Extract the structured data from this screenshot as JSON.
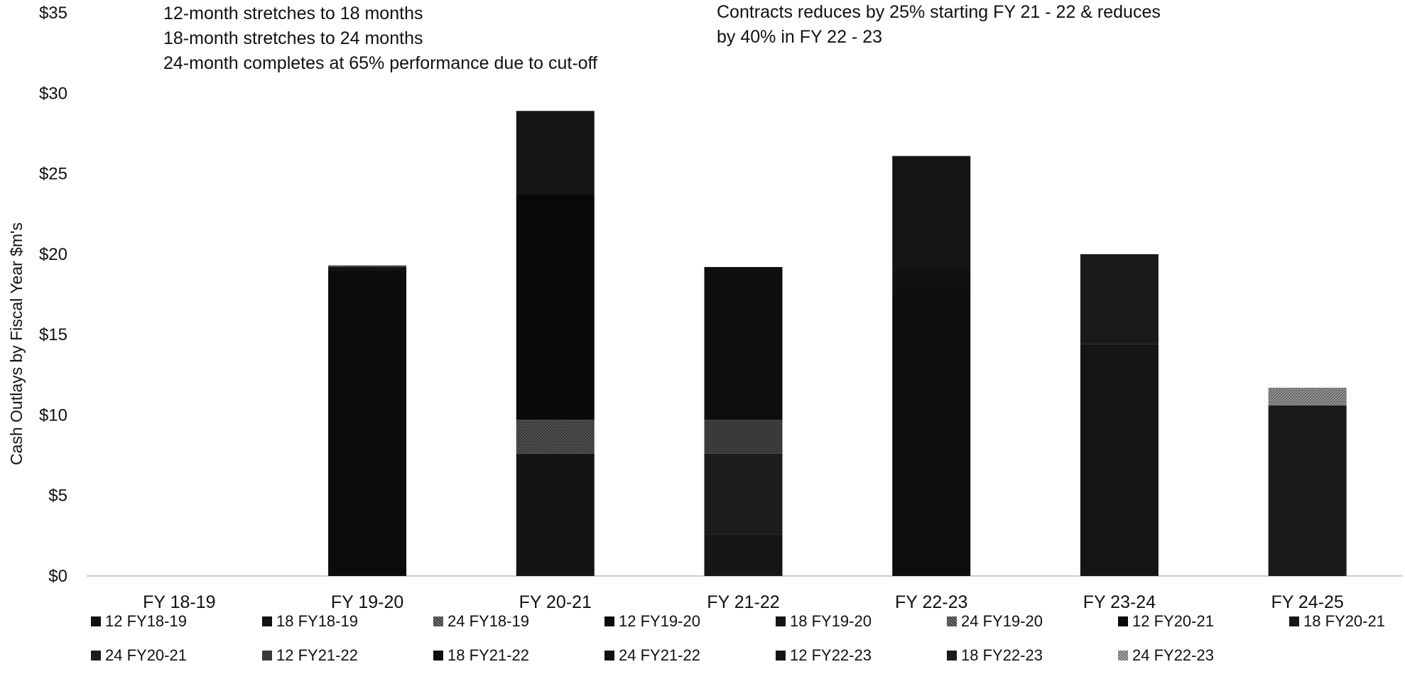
{
  "annotations": {
    "left": [
      "12-month stretches to 18 months",
      "18-month stretches to 24 months",
      "24-month completes at 65% performance due to cut-off"
    ],
    "right": [
      "Contracts reduces by 25% starting FY 21 - 22 & reduces",
      "by 40% in FY 22 - 23"
    ]
  },
  "chart_data": {
    "type": "bar",
    "stacked": true,
    "title": "",
    "ylabel": "Cash Outlays by Fiscal Year $m's",
    "xlabel": "",
    "ylim": [
      0,
      35
    ],
    "y_ticks": [
      0,
      5,
      10,
      15,
      20,
      25,
      30,
      35
    ],
    "y_tick_labels": [
      "$0",
      "$5",
      "$10",
      "$15",
      "$20",
      "$25",
      "$30",
      "$35"
    ],
    "categories": [
      "FY 18-19",
      "FY 19-20",
      "FY 20-21",
      "FY 21-22",
      "FY 22-23",
      "FY 23-24",
      "FY 24-25"
    ],
    "legend_position": "bottom",
    "series": [
      {
        "name": "12 FY18-19",
        "color": "#111111",
        "values": [
          0,
          0,
          0,
          0,
          0,
          0,
          0
        ]
      },
      {
        "name": "18 FY18-19",
        "color": "#111111",
        "values": [
          0,
          0,
          0,
          0,
          0,
          0,
          0
        ]
      },
      {
        "name": "24 FY18-19",
        "color": "#7a7a7a",
        "values": [
          0,
          0,
          0,
          0,
          0,
          0,
          0
        ]
      },
      {
        "name": "12 FY19-20",
        "color": "#0c0c0c",
        "values": [
          0,
          19.0,
          0,
          0,
          0,
          0,
          0
        ]
      },
      {
        "name": "18 FY19-20",
        "color": "#141414",
        "values": [
          0,
          0.2,
          7.6,
          0,
          0,
          0,
          0
        ]
      },
      {
        "name": "24 FY19-20",
        "color": "#555555",
        "values": [
          0,
          0.1,
          2.1,
          0,
          0,
          0,
          0
        ]
      },
      {
        "name": "12 FY20-21",
        "color": "#090909",
        "values": [
          0,
          0,
          14.0,
          0,
          0,
          0,
          0
        ]
      },
      {
        "name": "18 FY20-21",
        "color": "#161616",
        "values": [
          0,
          0,
          5.2,
          2.6,
          0,
          0,
          0
        ]
      },
      {
        "name": "24 FY20-21",
        "color": "#1c1c1c",
        "values": [
          0,
          0,
          0,
          5.0,
          0,
          0,
          0
        ]
      },
      {
        "name": "12 FY21-22",
        "color": "#3a3a3a",
        "values": [
          0,
          0,
          0,
          2.1,
          0,
          0,
          0
        ]
      },
      {
        "name": "18 FY21-22",
        "color": "#0e0e0e",
        "values": [
          0,
          0,
          0,
          9.5,
          17.5,
          0,
          0
        ]
      },
      {
        "name": "24 FY21-22",
        "color": "#101010",
        "values": [
          0,
          0,
          0,
          0,
          1.5,
          0,
          0
        ]
      },
      {
        "name": "12 FY22-23",
        "color": "#151515",
        "values": [
          0,
          0,
          0,
          0,
          7.1,
          14.4,
          0
        ]
      },
      {
        "name": "18 FY22-23",
        "color": "#1a1a1a",
        "values": [
          0,
          0,
          0,
          0,
          0,
          5.6,
          10.6
        ]
      },
      {
        "name": "24 FY22-23",
        "color": "#8a8a8a",
        "values": [
          0,
          0,
          0,
          0,
          0,
          0,
          1.1
        ]
      }
    ]
  }
}
